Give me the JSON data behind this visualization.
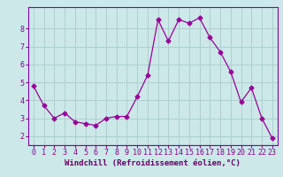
{
  "x": [
    0,
    1,
    2,
    3,
    4,
    5,
    6,
    7,
    8,
    9,
    10,
    11,
    12,
    13,
    14,
    15,
    16,
    17,
    18,
    19,
    20,
    21,
    22,
    23
  ],
  "y": [
    4.8,
    3.7,
    3.0,
    3.3,
    2.8,
    2.7,
    2.6,
    3.0,
    3.1,
    3.1,
    4.2,
    5.4,
    8.5,
    7.3,
    8.5,
    8.3,
    8.6,
    7.5,
    6.7,
    5.6,
    3.9,
    4.7,
    3.0,
    1.9
  ],
  "line_color": "#990099",
  "marker": "D",
  "marker_size": 2.5,
  "bg_color": "#cce8e8",
  "grid_color": "#aacccc",
  "xlabel": "Windchill (Refroidissement éolien,°C)",
  "xlabel_color": "#660066",
  "tick_color": "#880088",
  "ylim": [
    1.5,
    9.2
  ],
  "xlim": [
    -0.5,
    23.5
  ],
  "yticks": [
    2,
    3,
    4,
    5,
    6,
    7,
    8
  ],
  "xticks": [
    0,
    1,
    2,
    3,
    4,
    5,
    6,
    7,
    8,
    9,
    10,
    11,
    12,
    13,
    14,
    15,
    16,
    17,
    18,
    19,
    20,
    21,
    22,
    23
  ],
  "spine_color": "#8800aa",
  "tick_fontsize": 6.0,
  "xlabel_fontsize": 6.5
}
